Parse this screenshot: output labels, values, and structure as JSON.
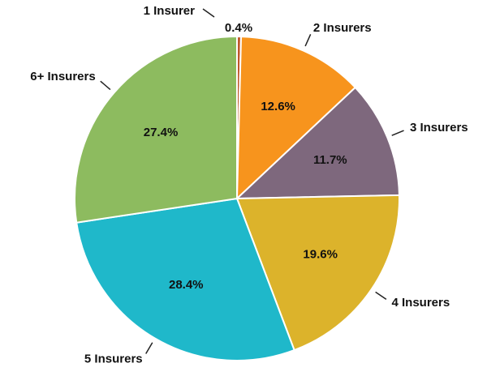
{
  "chart_data": {
    "type": "pie",
    "categories": [
      "1 Insurer",
      "2 Insurers",
      "3 Insurers",
      "4 Insurers",
      "5 Insurers",
      "6+ Insurers"
    ],
    "values": [
      0.4,
      12.6,
      11.7,
      19.6,
      28.4,
      27.4
    ],
    "value_labels": [
      "0.4%",
      "12.6%",
      "11.7%",
      "19.6%",
      "28.4%",
      "27.4%"
    ],
    "colors": [
      "#c0572a",
      "#f7941d",
      "#7e687d",
      "#dcb32b",
      "#1fb8ca",
      "#8dbb5f"
    ]
  }
}
